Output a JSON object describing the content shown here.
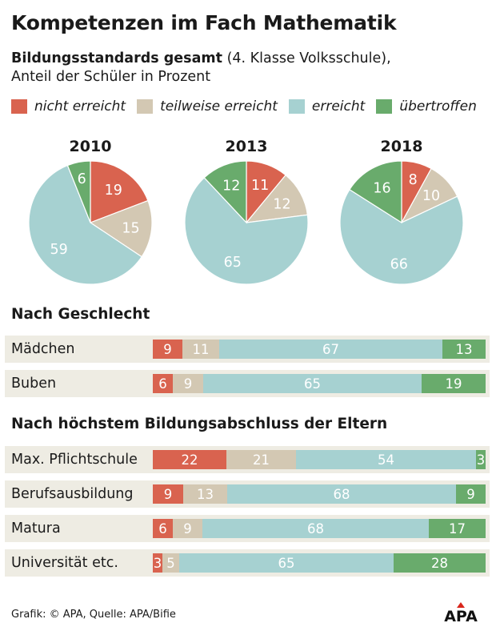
{
  "title": "Kompetenzen im Fach Mathematik",
  "subtitle_bold": "Bildungsstandards gesamt",
  "subtitle_rest": " (4. Klasse Volksschule),",
  "subtitle_line2": "Anteil der Schüler in Prozent",
  "legend": [
    {
      "label": "nicht erreicht",
      "color": "#d9634f"
    },
    {
      "label": "teilweise erreicht",
      "color": "#d3c8b3"
    },
    {
      "label": "erreicht",
      "color": "#a6d1d1"
    },
    {
      "label": "übertroffen",
      "color": "#69ab6c"
    }
  ],
  "section_gender": "Nach Geschlecht",
  "section_education": "Nach höchstem Bildungsabschluss der Eltern",
  "footer": "Grafik: © APA, Quelle: APA/Bifie",
  "logo_text": "APA",
  "chart_data": [
    {
      "type": "pie",
      "title": "Bildungsstandards gesamt",
      "categories": [
        "nicht erreicht",
        "teilweise erreicht",
        "erreicht",
        "übertroffen"
      ],
      "series": [
        {
          "name": "2010",
          "values": [
            19,
            15,
            59,
            6
          ]
        },
        {
          "name": "2013",
          "values": [
            11,
            12,
            65,
            12
          ]
        },
        {
          "name": "2018",
          "values": [
            8,
            10,
            66,
            16
          ]
        }
      ]
    },
    {
      "type": "bar",
      "orientation": "horizontal-stacked",
      "title": "Nach Geschlecht",
      "series_names": [
        "nicht erreicht",
        "teilweise erreicht",
        "erreicht",
        "übertroffen"
      ],
      "categories": [
        "Mädchen",
        "Buben"
      ],
      "values": [
        [
          9,
          11,
          67,
          13
        ],
        [
          6,
          9,
          65,
          19
        ]
      ]
    },
    {
      "type": "bar",
      "orientation": "horizontal-stacked",
      "title": "Nach höchstem Bildungsabschluss der Eltern",
      "series_names": [
        "nicht erreicht",
        "teilweise erreicht",
        "erreicht",
        "übertroffen"
      ],
      "categories": [
        "Max. Pflichtschule",
        "Berufsausbildung",
        "Matura",
        "Universität etc."
      ],
      "values": [
        [
          22,
          21,
          54,
          3
        ],
        [
          9,
          13,
          68,
          9
        ],
        [
          6,
          9,
          68,
          17
        ],
        [
          3,
          5,
          65,
          28
        ]
      ]
    }
  ]
}
